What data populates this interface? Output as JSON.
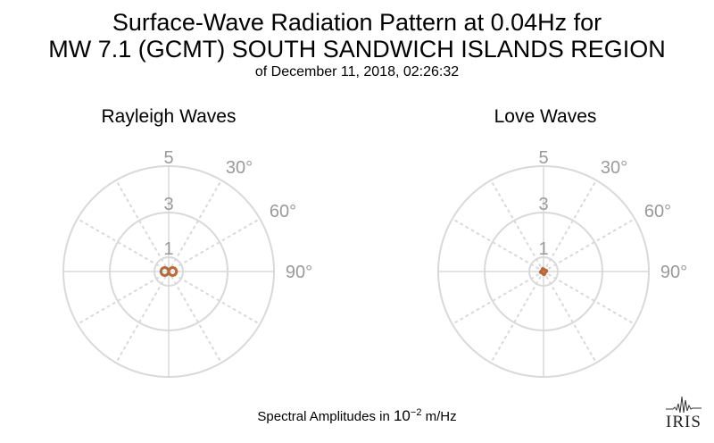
{
  "title": {
    "line1": "Surface-Wave Radiation Pattern at 0.04Hz for",
    "line2": "MW 7.1 (GCMT) SOUTH SANDWICH ISLANDS REGION",
    "subtitle": "of December 11, 2018, 02:26:32"
  },
  "footer": {
    "prefix": "Spectral Amplitudes in ",
    "base": "10",
    "exponent": "−2",
    "unit": " m/Hz"
  },
  "logo": {
    "text": "IRIS"
  },
  "colors": {
    "pattern": "#b86a3a",
    "grid": "#d9d9d9",
    "label": "#9a9a9a",
    "background": "#ffffff"
  },
  "chart_data": [
    {
      "type": "polar-line",
      "title": "Rayleigh Waves",
      "radial_ticks": [
        "1",
        "3",
        "5"
      ],
      "radial_tick_values": [
        1,
        3,
        5
      ],
      "rlim": [
        0,
        5
      ],
      "angle_ticks": [
        "30°",
        "60°",
        "90°"
      ],
      "angle_tick_values": [
        30,
        60,
        90
      ],
      "grid": true,
      "shape": "two-lobed",
      "series": [
        {
          "theta": [
            0,
            15,
            30,
            45,
            60,
            75,
            90,
            105,
            120,
            135,
            150,
            165,
            180,
            195,
            210,
            225,
            240,
            255,
            270,
            285,
            300,
            315,
            330,
            345,
            360
          ],
          "r": [
            0.02,
            0.15,
            0.28,
            0.4,
            0.48,
            0.53,
            0.55,
            0.53,
            0.48,
            0.4,
            0.28,
            0.15,
            0.02,
            0.15,
            0.28,
            0.4,
            0.48,
            0.53,
            0.55,
            0.53,
            0.48,
            0.4,
            0.28,
            0.15,
            0.02
          ]
        }
      ]
    },
    {
      "type": "polar-line",
      "title": "Love Waves",
      "radial_ticks": [
        "1",
        "3",
        "5"
      ],
      "radial_tick_values": [
        1,
        3,
        5
      ],
      "rlim": [
        0,
        5
      ],
      "angle_ticks": [
        "30°",
        "60°",
        "90°"
      ],
      "angle_tick_values": [
        30,
        60,
        90
      ],
      "grid": true,
      "shape": "four-lobed",
      "series": [
        {
          "theta": [
            0,
            15,
            30,
            45,
            60,
            75,
            90,
            105,
            120,
            135,
            150,
            165,
            180,
            195,
            210,
            225,
            240,
            255,
            270,
            285,
            300,
            315,
            330,
            345,
            360
          ],
          "r": [
            0.22,
            0.18,
            0.12,
            0.14,
            0.2,
            0.24,
            0.22,
            0.18,
            0.12,
            0.14,
            0.2,
            0.24,
            0.22,
            0.18,
            0.12,
            0.14,
            0.2,
            0.24,
            0.22,
            0.18,
            0.12,
            0.14,
            0.2,
            0.24,
            0.22
          ]
        }
      ]
    }
  ]
}
